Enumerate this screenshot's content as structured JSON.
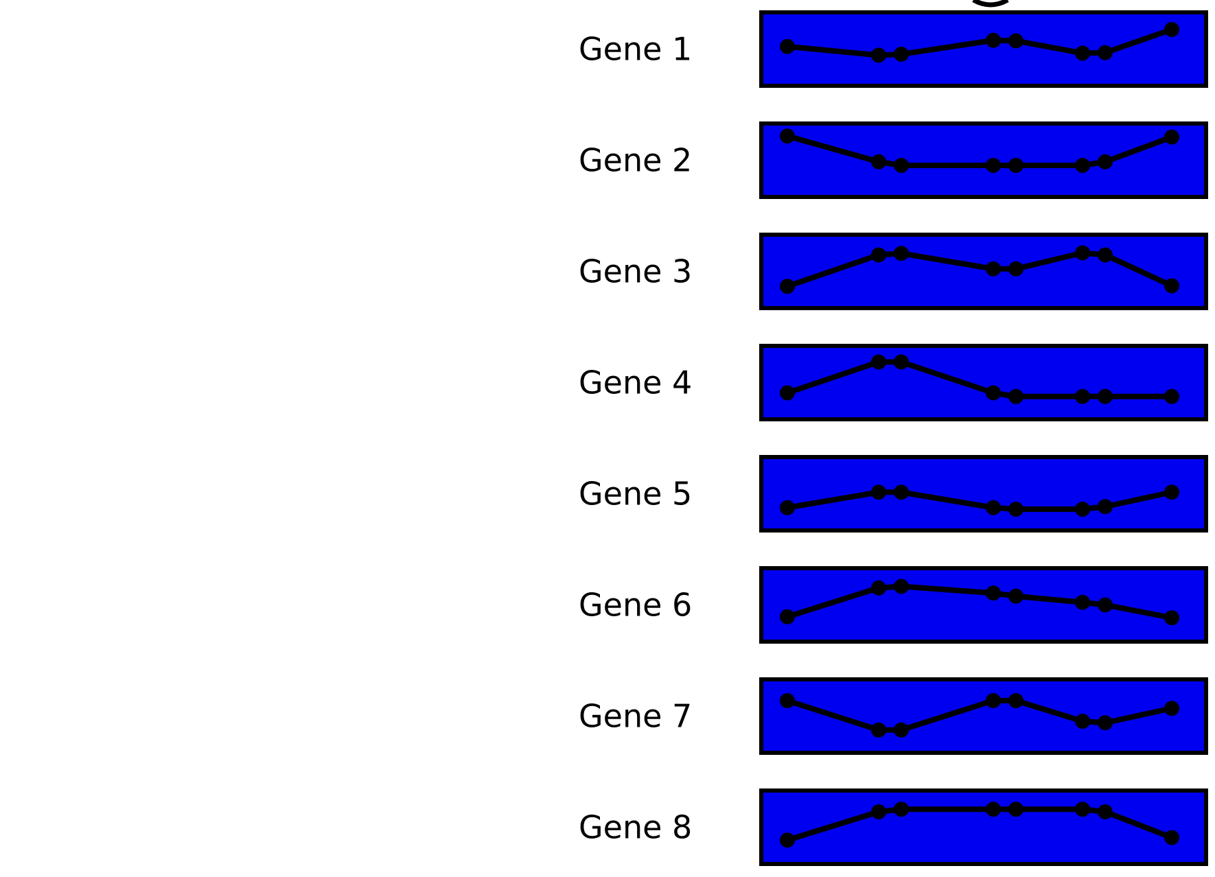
{
  "colors": {
    "panel_fill": "#0000f0",
    "line": "#000000",
    "background": "#ffffff"
  },
  "genes": [
    {
      "label": "Gene 1",
      "profile": [
        0.55,
        0.38,
        0.4,
        0.67,
        0.66,
        0.42,
        0.43,
        0.88
      ]
    },
    {
      "label": "Gene 2",
      "profile": [
        0.97,
        0.47,
        0.4,
        0.4,
        0.4,
        0.4,
        0.47,
        0.95
      ]
    },
    {
      "label": "Gene 3",
      "profile": [
        0.21,
        0.82,
        0.85,
        0.55,
        0.55,
        0.86,
        0.82,
        0.22
      ]
    },
    {
      "label": "Gene 4",
      "profile": [
        0.3,
        0.9,
        0.9,
        0.3,
        0.23,
        0.23,
        0.23,
        0.23
      ]
    },
    {
      "label": "Gene 5",
      "profile": [
        0.23,
        0.53,
        0.53,
        0.23,
        0.2,
        0.2,
        0.25,
        0.53
      ]
    },
    {
      "label": "Gene 6",
      "profile": [
        0.27,
        0.83,
        0.86,
        0.73,
        0.67,
        0.55,
        0.5,
        0.25
      ]
    },
    {
      "label": "Gene 7",
      "profile": [
        0.8,
        0.23,
        0.23,
        0.8,
        0.8,
        0.4,
        0.37,
        0.65
      ]
    },
    {
      "label": "Gene 8",
      "profile": [
        0.25,
        0.8,
        0.85,
        0.85,
        0.85,
        0.85,
        0.8,
        0.3
      ]
    }
  ]
}
